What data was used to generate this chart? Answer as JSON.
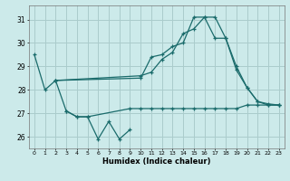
{
  "bg_color": "#cceaea",
  "grid_color": "#aacccc",
  "line_color": "#1a6b6b",
  "xlabel": "Humidex (Indice chaleur)",
  "ylim": [
    25.5,
    31.6
  ],
  "xlim": [
    -0.5,
    23.5
  ],
  "yticks": [
    26,
    27,
    28,
    29,
    30,
    31
  ],
  "xticks": [
    0,
    1,
    2,
    3,
    4,
    5,
    6,
    7,
    8,
    9,
    10,
    11,
    12,
    13,
    14,
    15,
    16,
    17,
    18,
    19,
    20,
    21,
    22,
    23
  ],
  "line_upper_x": [
    0,
    1,
    2,
    10,
    11,
    12,
    13,
    14,
    15,
    16,
    17,
    18,
    19,
    20,
    21,
    22,
    23
  ],
  "line_upper_y": [
    29.5,
    28.0,
    28.4,
    28.5,
    29.4,
    29.5,
    29.85,
    30.0,
    31.1,
    31.1,
    31.1,
    30.2,
    29.0,
    28.1,
    27.5,
    27.4,
    27.35
  ],
  "line_mid_x": [
    2,
    10,
    11,
    12,
    13,
    14,
    15,
    16,
    17,
    18,
    19,
    20,
    21,
    22,
    23
  ],
  "line_mid_y": [
    28.4,
    28.6,
    28.75,
    29.3,
    29.6,
    30.4,
    30.6,
    31.1,
    30.2,
    30.2,
    28.85,
    28.1,
    27.5,
    27.35,
    27.35
  ],
  "line_low_x": [
    2,
    3,
    4,
    5,
    9,
    10,
    11,
    12,
    13,
    14,
    15,
    16,
    17,
    18,
    19,
    20,
    21,
    22,
    23
  ],
  "line_low_y": [
    28.4,
    27.1,
    26.85,
    26.85,
    27.2,
    27.2,
    27.2,
    27.2,
    27.2,
    27.2,
    27.2,
    27.2,
    27.2,
    27.2,
    27.2,
    27.35,
    27.35,
    27.35,
    27.35
  ],
  "line_dip_x": [
    3,
    4,
    5,
    6,
    7,
    8,
    9
  ],
  "line_dip_y": [
    27.1,
    26.85,
    26.85,
    25.9,
    26.65,
    25.9,
    26.3
  ]
}
